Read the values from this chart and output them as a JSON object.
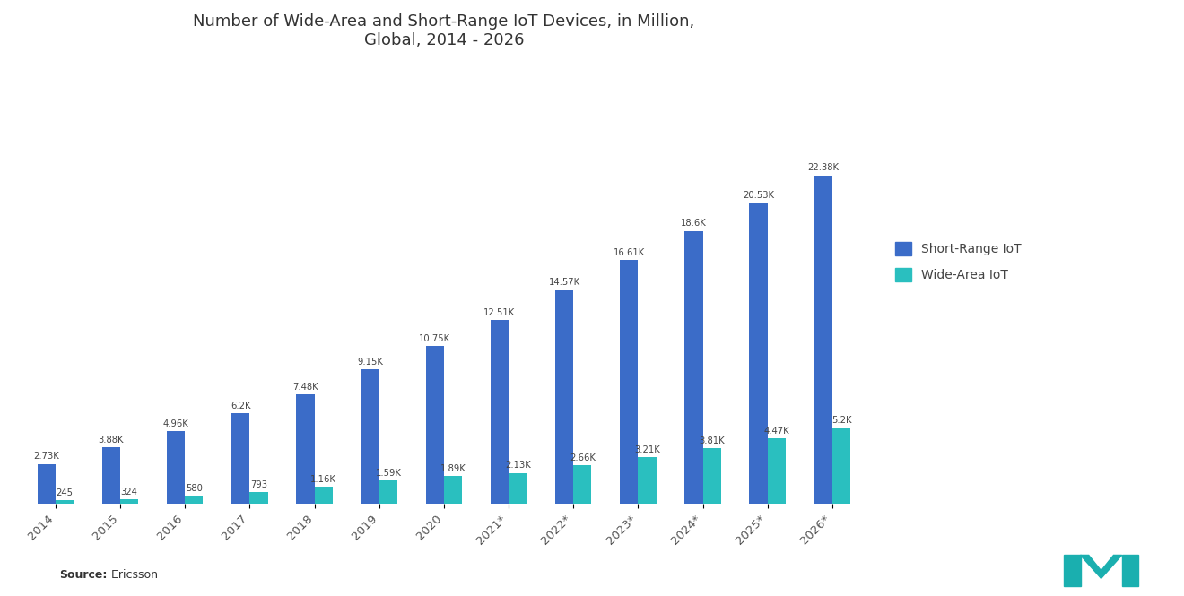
{
  "title": "Number of Wide-Area and Short-Range IoT Devices, in Million,\nGlobal, 2014 - 2026",
  "categories": [
    "2014",
    "2015",
    "2016",
    "2017",
    "2018",
    "2019",
    "2020",
    "2021*",
    "2022*",
    "2023*",
    "2024*",
    "2025*",
    "2026*"
  ],
  "short_range": [
    2730,
    3880,
    4960,
    6200,
    7480,
    9150,
    10750,
    12510,
    14570,
    16610,
    18600,
    20530,
    22380
  ],
  "wide_area": [
    245,
    324,
    580,
    793,
    1160,
    1590,
    1890,
    2130,
    2660,
    3210,
    3810,
    4470,
    5200
  ],
  "short_range_labels": [
    "2.73K",
    "3.88K",
    "4.96K",
    "6.2K",
    "7.48K",
    "9.15K",
    "10.75K",
    "12.51K",
    "14.57K",
    "16.61K",
    "18.6K",
    "20.53K",
    "22.38K"
  ],
  "wide_area_labels": [
    "245",
    "324",
    "580",
    "793",
    "1.16K",
    "1.59K",
    "1.89K",
    "2.13K",
    "2.66K",
    "3.21K",
    "3.81K",
    "4.47K",
    "5.2K"
  ],
  "short_range_color": "#3B6CC8",
  "wide_area_color": "#2ABFBF",
  "background_color": "#FFFFFF",
  "legend_short_range": "Short-Range IoT",
  "legend_wide_area": "Wide-Area IoT",
  "source_bold": "Source:",
  "source_rest": "  Ericsson",
  "bar_width": 0.28,
  "ylim": [
    0,
    30000
  ]
}
